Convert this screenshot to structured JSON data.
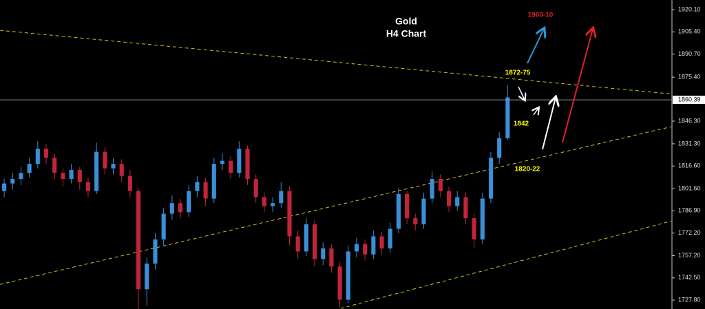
{
  "chart_data": {
    "type": "candlestick",
    "title": "Gold",
    "subtitle": "H4 Chart",
    "up_color": "#3a8fd8",
    "down_color": "#c4233c",
    "xlim": [
      0,
      80
    ],
    "ylim": [
      1721.9,
      1926.5
    ],
    "yticks": [
      {
        "value": 1920.1,
        "label": "1920.10"
      },
      {
        "value": 1905.4,
        "label": "1905.40"
      },
      {
        "value": 1890.7,
        "label": "1890.70"
      },
      {
        "value": 1875.4,
        "label": "1875.40"
      },
      {
        "value": 1846.3,
        "label": "1846.30"
      },
      {
        "value": 1831.3,
        "label": "1831.30"
      },
      {
        "value": 1816.6,
        "label": "1816.60"
      },
      {
        "value": 1801.6,
        "label": "1801.60"
      },
      {
        "value": 1786.9,
        "label": "1786.90"
      },
      {
        "value": 1772.2,
        "label": "1772.20"
      },
      {
        "value": 1757.2,
        "label": "1757.20"
      },
      {
        "value": 1742.5,
        "label": "1742.50"
      },
      {
        "value": 1727.8,
        "label": "1727.80"
      }
    ],
    "price_line": 1860.39,
    "ohlc": [
      [
        1800,
        1808,
        1796,
        1805
      ],
      [
        1805,
        1812,
        1801,
        1808
      ],
      [
        1808,
        1816,
        1804,
        1812
      ],
      [
        1812,
        1822,
        1809,
        1818
      ],
      [
        1818,
        1833,
        1815,
        1828
      ],
      [
        1828,
        1831,
        1818,
        1822
      ],
      [
        1822,
        1825,
        1808,
        1812
      ],
      [
        1812,
        1815,
        1803,
        1808
      ],
      [
        1808,
        1818,
        1805,
        1814
      ],
      [
        1814,
        1816,
        1801,
        1806
      ],
      [
        1806,
        1809,
        1796,
        1800
      ],
      [
        1800,
        1832,
        1798,
        1826
      ],
      [
        1826,
        1829,
        1811,
        1815
      ],
      [
        1815,
        1822,
        1811,
        1818
      ],
      [
        1818,
        1821,
        1806,
        1810
      ],
      [
        1810,
        1814,
        1796,
        1800
      ],
      [
        1800,
        1802,
        1722,
        1735
      ],
      [
        1735,
        1756,
        1724,
        1752
      ],
      [
        1752,
        1772,
        1748,
        1768
      ],
      [
        1768,
        1789,
        1764,
        1785
      ],
      [
        1785,
        1797,
        1781,
        1792
      ],
      [
        1792,
        1795,
        1782,
        1786
      ],
      [
        1786,
        1804,
        1783,
        1800
      ],
      [
        1800,
        1810,
        1796,
        1806
      ],
      [
        1806,
        1809,
        1790,
        1795
      ],
      [
        1795,
        1822,
        1792,
        1818
      ],
      [
        1818,
        1825,
        1814,
        1820
      ],
      [
        1820,
        1823,
        1808,
        1812
      ],
      [
        1812,
        1833,
        1809,
        1828
      ],
      [
        1828,
        1830,
        1804,
        1808
      ],
      [
        1808,
        1811,
        1792,
        1796
      ],
      [
        1796,
        1799,
        1786,
        1790
      ],
      [
        1790,
        1796,
        1786,
        1792
      ],
      [
        1792,
        1806,
        1789,
        1800
      ],
      [
        1800,
        1803,
        1764,
        1770
      ],
      [
        1770,
        1774,
        1755,
        1760
      ],
      [
        1760,
        1782,
        1757,
        1778
      ],
      [
        1778,
        1781,
        1750,
        1755
      ],
      [
        1755,
        1766,
        1751,
        1762
      ],
      [
        1762,
        1765,
        1746,
        1750
      ],
      [
        1750,
        1753,
        1723,
        1728
      ],
      [
        1728,
        1764,
        1726,
        1760
      ],
      [
        1760,
        1769,
        1756,
        1765
      ],
      [
        1765,
        1768,
        1754,
        1758
      ],
      [
        1758,
        1774,
        1755,
        1770
      ],
      [
        1770,
        1773,
        1758,
        1762
      ],
      [
        1762,
        1779,
        1759,
        1775
      ],
      [
        1775,
        1802,
        1772,
        1798
      ],
      [
        1798,
        1800,
        1778,
        1782
      ],
      [
        1782,
        1785,
        1774,
        1778
      ],
      [
        1778,
        1799,
        1775,
        1795
      ],
      [
        1795,
        1813,
        1792,
        1808
      ],
      [
        1808,
        1811,
        1796,
        1800
      ],
      [
        1800,
        1803,
        1786,
        1790
      ],
      [
        1790,
        1800,
        1787,
        1796
      ],
      [
        1796,
        1799,
        1778,
        1782
      ],
      [
        1782,
        1785,
        1762,
        1768
      ],
      [
        1768,
        1799,
        1765,
        1795
      ],
      [
        1795,
        1826,
        1792,
        1822
      ],
      [
        1822,
        1839,
        1818,
        1835
      ],
      [
        1835,
        1870,
        1834,
        1862
      ]
    ],
    "trendlines": [
      {
        "color": "#d8c020",
        "x": [
          0,
          80
        ],
        "values": [
          1906.4,
          1864.3
        ]
      },
      {
        "color": "#d8c020",
        "x": [
          0,
          80
        ],
        "values": [
          1738.2,
          1842.6
        ]
      },
      {
        "color": "#d8c020",
        "x": [
          40.6,
          80
        ],
        "values": [
          1722.3,
          1780.1
        ]
      }
    ],
    "annotations": [
      "1900-10",
      "1872-75",
      "1842",
      "1820-22"
    ]
  }
}
